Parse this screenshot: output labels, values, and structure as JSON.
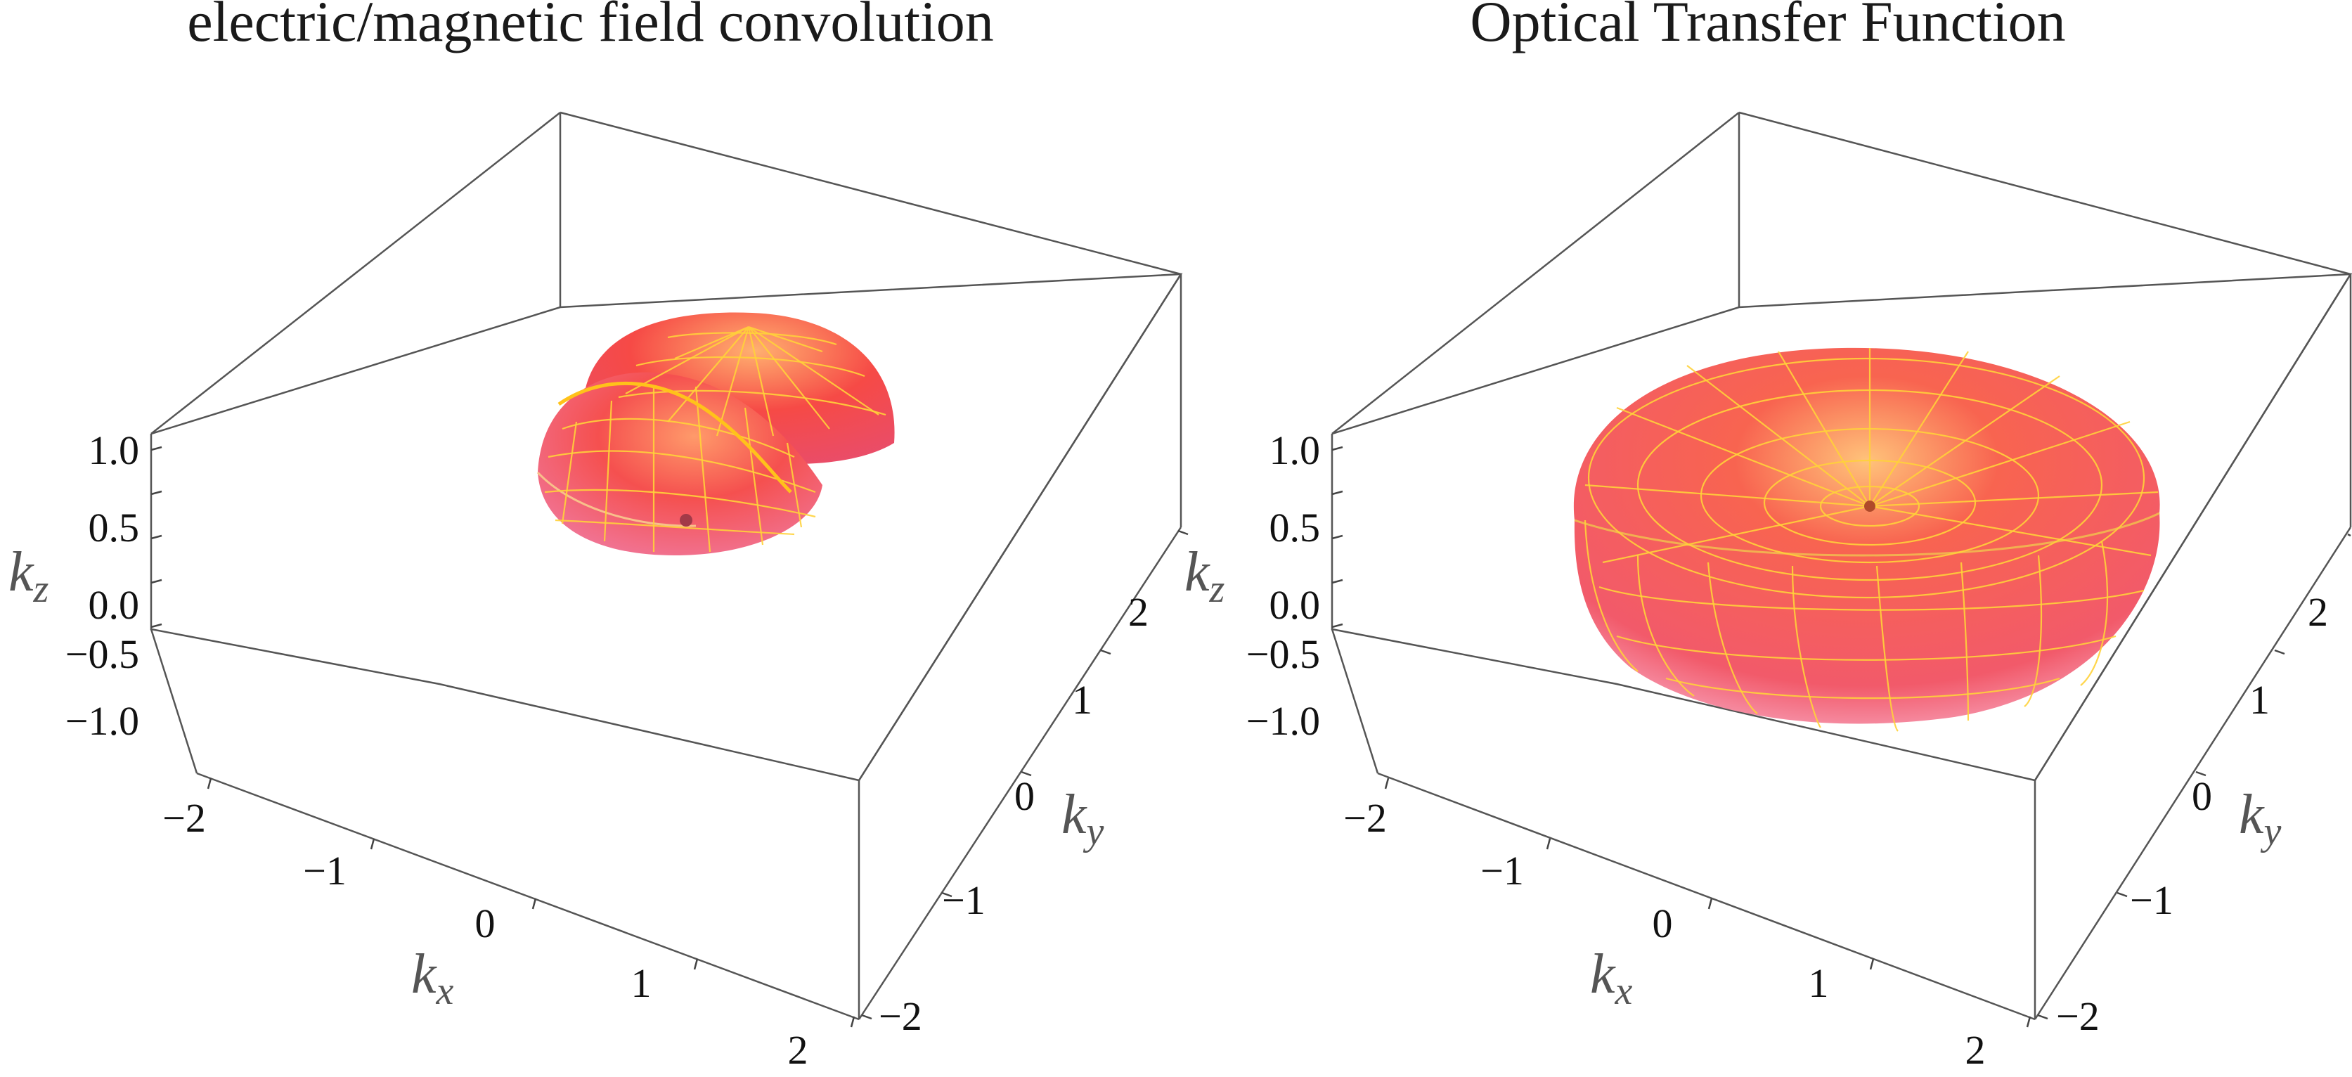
{
  "chart_data": [
    {
      "type": "surface3d",
      "title": "electric/magnetic field convolution",
      "xlabel": "k",
      "xlabel_sub": "x",
      "ylabel": "k",
      "ylabel_sub": "y",
      "zlabel": "k",
      "zlabel_sub": "z",
      "xlim": [
        -2,
        2
      ],
      "ylim": [
        -2,
        2
      ],
      "zlim": [
        -1,
        1
      ],
      "xticks": [
        "−2",
        "−1",
        "0",
        "1",
        "2"
      ],
      "yticks": [
        "−2",
        "−1",
        "0",
        "1",
        "2"
      ],
      "zticks": [
        "−1.0",
        "−0.5",
        "0.0",
        "0.5",
        "1.0"
      ],
      "surface": "two overlapping hemispherical caps (upper half of spheres), radius about 1, centres offset along k_x",
      "surface_color": "#f2484e",
      "mesh_color": "#ffd23a"
    },
    {
      "type": "surface3d",
      "title": "Optical Transfer Function",
      "xlabel": "k",
      "xlabel_sub": "x",
      "ylabel": "k",
      "ylabel_sub": "y",
      "zlabel": "k",
      "zlabel_sub": "z",
      "xlim": [
        -2,
        2
      ],
      "ylim": [
        -2,
        2
      ],
      "zlim": [
        -1,
        1
      ],
      "xticks": [
        "−2",
        "−1",
        "0",
        "1",
        "2"
      ],
      "yticks": [
        "−2",
        "−1",
        "0",
        "1",
        "2"
      ],
      "zticks": [
        "−1.0",
        "−0.5",
        "0.0",
        "0.5",
        "1.0"
      ],
      "surface": "toroidal (doughnut) support of radius about 2 with a pinched centre at the origin",
      "surface_color": "#f2484e",
      "mesh_color": "#ffd23a"
    }
  ]
}
